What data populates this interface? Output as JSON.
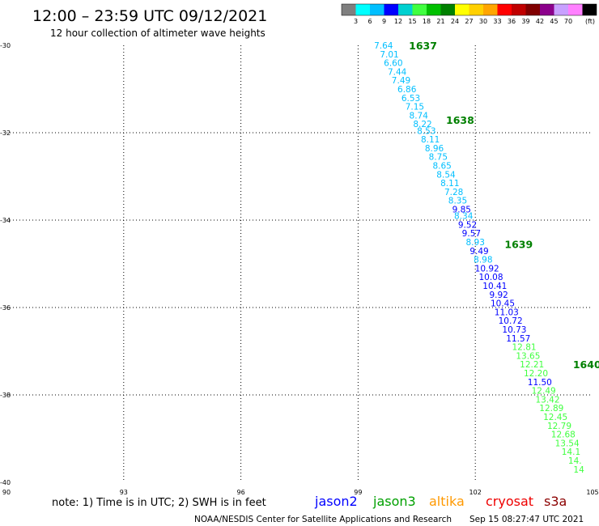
{
  "header": {
    "title": "12:00 – 23:59 UTC 09/12/2021",
    "subtitle": "12 hour collection of altimeter wave heights"
  },
  "colorbar": {
    "colors": [
      "#7f7f7f",
      "#00ffff",
      "#00bfff",
      "#0000ff",
      "#00d0d0",
      "#40ff40",
      "#00c000",
      "#008000",
      "#ffff00",
      "#ffd000",
      "#ffa500",
      "#ff0000",
      "#c00000",
      "#800000",
      "#8b008b",
      "#c8a0ff",
      "#ff80ff",
      "#000000"
    ],
    "labels": [
      "3",
      "6",
      "9",
      "12",
      "15",
      "18",
      "21",
      "24",
      "27",
      "30",
      "33",
      "36",
      "39",
      "42",
      "45",
      "70"
    ],
    "unit": "(ft)"
  },
  "footer": {
    "note": "note: 1) Time is in UTC; 2) SWH is in feet",
    "legend": [
      {
        "name": "jason2",
        "color": "#0000ff"
      },
      {
        "name": "jason3",
        "color": "#00a000"
      },
      {
        "name": "altika",
        "color": "#ff9900"
      },
      {
        "name": "cryosat",
        "color": "#ee0000"
      },
      {
        "name": "s3a",
        "color": "#8b0000"
      }
    ],
    "credit": "NOAA/NESDIS Center for Satellite Applications and Research",
    "timestamp": "Sep 15 08:27:47 UTC 2021"
  },
  "chart_data": {
    "type": "scatter",
    "xlim": [
      90,
      105
    ],
    "ylim": [
      -40,
      -30
    ],
    "x_ticks": [
      90,
      93,
      96,
      99,
      102,
      105
    ],
    "y_ticks": [
      -30,
      -32,
      -34,
      -36,
      -38,
      -40
    ],
    "x_tick_labels": [
      "90",
      "93",
      "96",
      "99",
      "102",
      "105"
    ],
    "y_tick_labels": [
      "-30",
      "-32",
      "-34",
      "-36",
      "-38",
      "-40"
    ],
    "grid": true,
    "times": [
      {
        "label": "1637",
        "x": 100.3,
        "y": -30.0
      },
      {
        "label": "1638",
        "x": 101.25,
        "y": -31.7
      },
      {
        "label": "1639",
        "x": 102.75,
        "y": -34.55
      },
      {
        "label": "1640",
        "x": 104.5,
        "y": -37.3
      }
    ],
    "series": [
      {
        "points": [
          {
            "x": 99.65,
            "y": -30.0,
            "v": "7.64",
            "c": "#00bfff"
          },
          {
            "x": 99.8,
            "y": -30.2,
            "v": "7.01",
            "c": "#00bfff"
          },
          {
            "x": 99.9,
            "y": -30.4,
            "v": "6.60",
            "c": "#00bfff"
          },
          {
            "x": 100.0,
            "y": -30.6,
            "v": "7.44",
            "c": "#00bfff"
          },
          {
            "x": 100.1,
            "y": -30.8,
            "v": "7.49",
            "c": "#00bfff"
          },
          {
            "x": 100.25,
            "y": -31.0,
            "v": "6.86",
            "c": "#00bfff"
          },
          {
            "x": 100.35,
            "y": -31.2,
            "v": "6.53",
            "c": "#00bfff"
          },
          {
            "x": 100.45,
            "y": -31.4,
            "v": "7.15",
            "c": "#00bfff"
          },
          {
            "x": 100.55,
            "y": -31.6,
            "v": "8.74",
            "c": "#00bfff"
          },
          {
            "x": 100.65,
            "y": -31.8,
            "v": "8.22",
            "c": "#00bfff"
          },
          {
            "x": 100.75,
            "y": -31.95,
            "v": "8.53",
            "c": "#00bfff"
          },
          {
            "x": 100.85,
            "y": -32.15,
            "v": "8.11",
            "c": "#00bfff"
          },
          {
            "x": 100.95,
            "y": -32.35,
            "v": "8.96",
            "c": "#00bfff"
          },
          {
            "x": 101.05,
            "y": -32.55,
            "v": "8.75",
            "c": "#00bfff"
          },
          {
            "x": 101.15,
            "y": -32.75,
            "v": "8.65",
            "c": "#00bfff"
          },
          {
            "x": 101.25,
            "y": -32.95,
            "v": "8.54",
            "c": "#00bfff"
          },
          {
            "x": 101.35,
            "y": -33.15,
            "v": "8.11",
            "c": "#00bfff"
          },
          {
            "x": 101.45,
            "y": -33.35,
            "v": "7.28",
            "c": "#00bfff"
          },
          {
            "x": 101.55,
            "y": -33.55,
            "v": "8.35",
            "c": "#00bfff"
          },
          {
            "x": 101.65,
            "y": -33.75,
            "v": "9.85",
            "c": "#0000ff"
          },
          {
            "x": 101.7,
            "y": -33.9,
            "v": "8.34",
            "c": "#00bfff"
          },
          {
            "x": 101.8,
            "y": -34.1,
            "v": "9.52",
            "c": "#0000ff"
          },
          {
            "x": 101.9,
            "y": -34.3,
            "v": "9.57",
            "c": "#0000ff"
          },
          {
            "x": 102.0,
            "y": -34.5,
            "v": "8.93",
            "c": "#00bfff"
          },
          {
            "x": 102.1,
            "y": -34.7,
            "v": "9.49",
            "c": "#0000ff"
          },
          {
            "x": 102.2,
            "y": -34.9,
            "v": "8.98",
            "c": "#00bfff"
          },
          {
            "x": 102.3,
            "y": -35.1,
            "v": "10.92",
            "c": "#0000ff"
          },
          {
            "x": 102.4,
            "y": -35.3,
            "v": "10.08",
            "c": "#0000ff"
          },
          {
            "x": 102.5,
            "y": -35.5,
            "v": "10.41",
            "c": "#0000ff"
          },
          {
            "x": 102.6,
            "y": -35.7,
            "v": "9.92",
            "c": "#0000ff"
          },
          {
            "x": 102.7,
            "y": -35.9,
            "v": "10.45",
            "c": "#0000ff"
          },
          {
            "x": 102.8,
            "y": -36.1,
            "v": "11.03",
            "c": "#0000ff"
          },
          {
            "x": 102.9,
            "y": -36.3,
            "v": "10.72",
            "c": "#0000ff"
          },
          {
            "x": 103.0,
            "y": -36.5,
            "v": "10.73",
            "c": "#0000ff"
          },
          {
            "x": 103.1,
            "y": -36.7,
            "v": "11.57",
            "c": "#0000ff"
          },
          {
            "x": 103.25,
            "y": -36.9,
            "v": "12.81",
            "c": "#40ff40"
          },
          {
            "x": 103.35,
            "y": -37.1,
            "v": "13.65",
            "c": "#40ff40"
          },
          {
            "x": 103.45,
            "y": -37.3,
            "v": "12.21",
            "c": "#40ff40"
          },
          {
            "x": 103.55,
            "y": -37.5,
            "v": "12.20",
            "c": "#40ff40"
          },
          {
            "x": 103.65,
            "y": -37.7,
            "v": "11.50",
            "c": "#0000ff"
          },
          {
            "x": 103.75,
            "y": -37.9,
            "v": "12.49",
            "c": "#40ff40"
          },
          {
            "x": 103.85,
            "y": -38.1,
            "v": "13.42",
            "c": "#40ff40"
          },
          {
            "x": 103.95,
            "y": -38.3,
            "v": "12.89",
            "c": "#40ff40"
          },
          {
            "x": 104.05,
            "y": -38.5,
            "v": "12.45",
            "c": "#40ff40"
          },
          {
            "x": 104.15,
            "y": -38.7,
            "v": "12.79",
            "c": "#40ff40"
          },
          {
            "x": 104.25,
            "y": -38.9,
            "v": "12.68",
            "c": "#40ff40"
          },
          {
            "x": 104.35,
            "y": -39.1,
            "v": "13.54",
            "c": "#40ff40"
          },
          {
            "x": 104.45,
            "y": -39.3,
            "v": "14.1",
            "c": "#40ff40"
          },
          {
            "x": 104.55,
            "y": -39.5,
            "v": "14.",
            "c": "#40ff40"
          },
          {
            "x": 104.65,
            "y": -39.7,
            "v": "14",
            "c": "#40ff40"
          }
        ]
      }
    ]
  }
}
